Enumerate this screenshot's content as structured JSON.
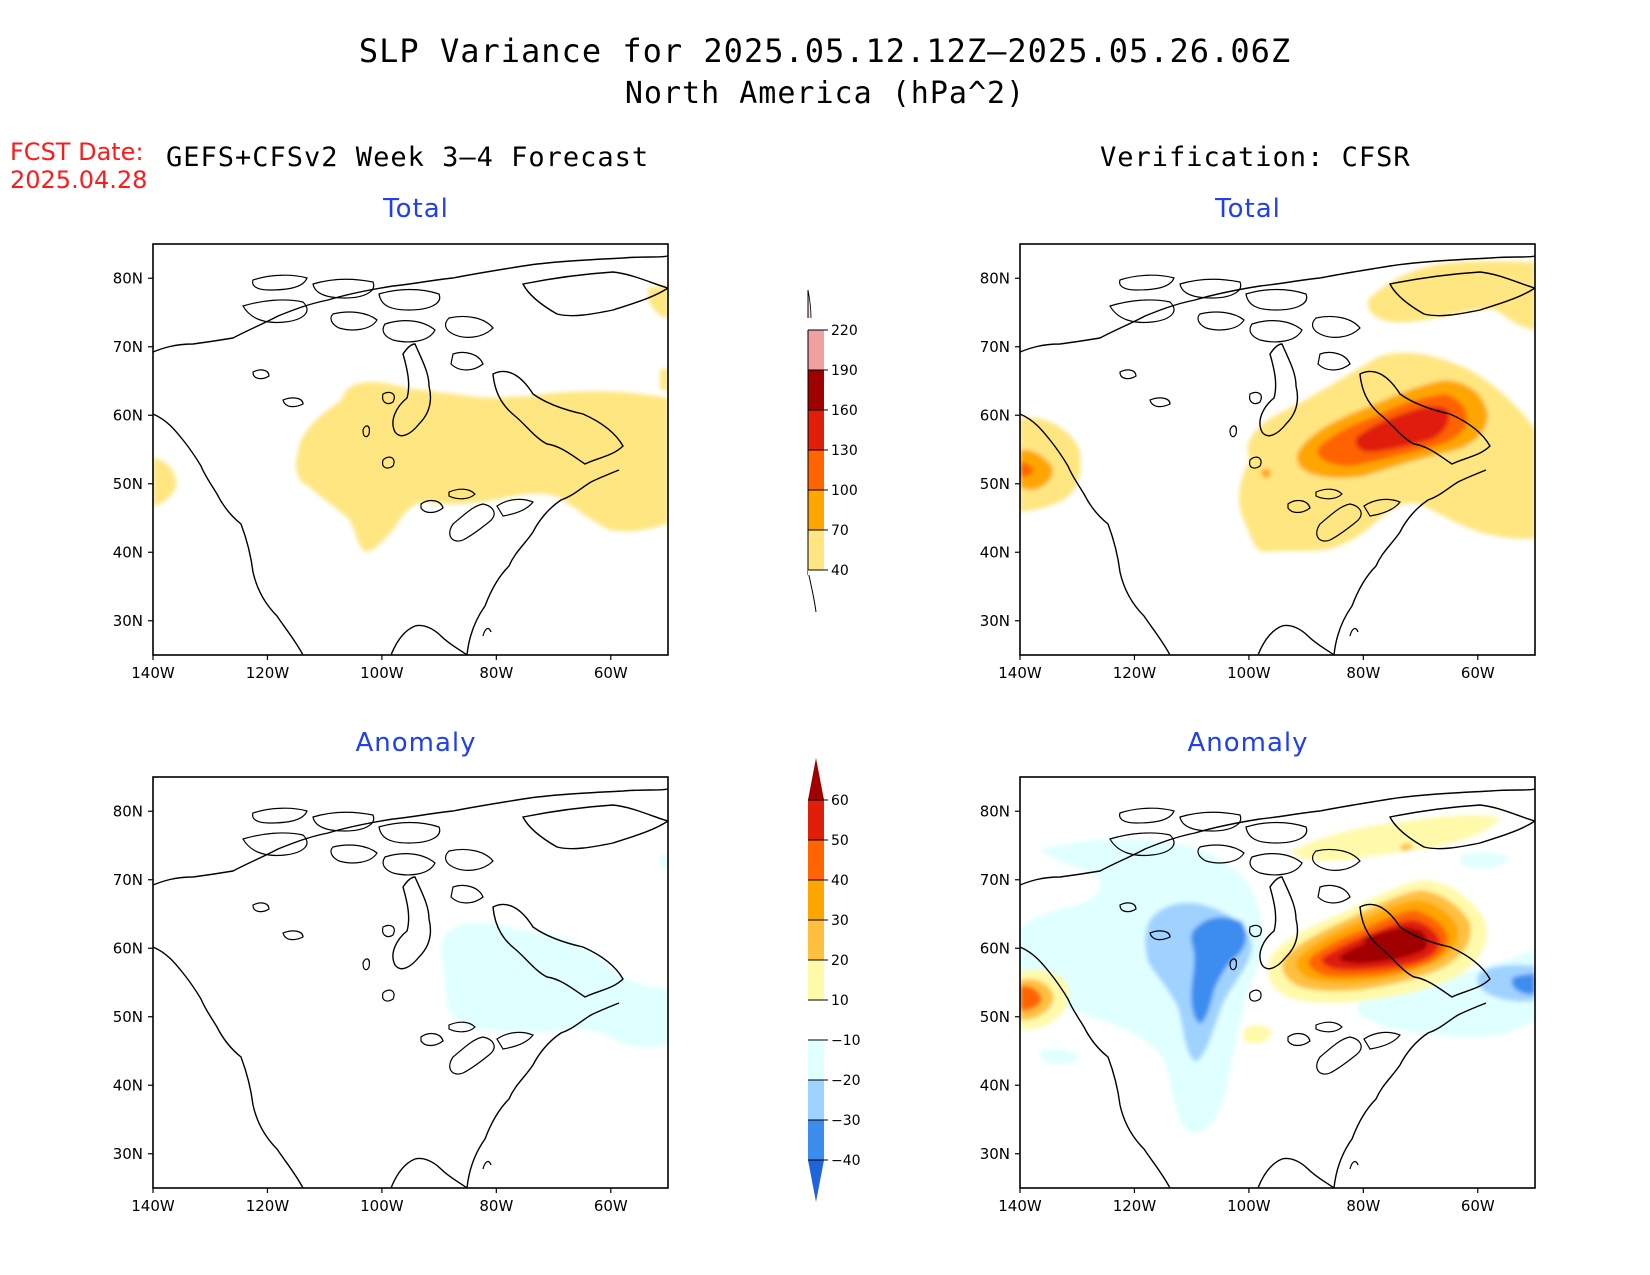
{
  "title": {
    "line1": "SLP Variance for 2025.05.12.12Z–2025.05.26.06Z",
    "line2": "North America (hPa^2)"
  },
  "forecast": {
    "date_label": "FCST Date:",
    "date_value": "2025.04.28",
    "heading": "GEFS+CFSv2 Week 3–4 Forecast"
  },
  "verification": {
    "heading": "Verification: CFSR"
  },
  "panels": {
    "fcst_total_title": "Total",
    "fcst_anom_title": "Anomaly",
    "verif_total_title": "Total",
    "verif_anom_title": "Anomaly"
  },
  "axes": {
    "lat_ticks": [
      "80N",
      "70N",
      "60N",
      "50N",
      "40N",
      "30N"
    ],
    "lon_ticks": [
      "140W",
      "120W",
      "100W",
      "80W",
      "60W"
    ],
    "lat_values": [
      80,
      70,
      60,
      50,
      40,
      30
    ],
    "lon_values": [
      -140,
      -120,
      -100,
      -80,
      -60
    ],
    "lat_range": [
      25,
      85
    ],
    "lon_range": [
      -140,
      -50
    ]
  },
  "colorbars": {
    "total": {
      "labels": [
        "40",
        "70",
        "100",
        "130",
        "160",
        "190",
        "220"
      ],
      "colors": [
        "#ffe680",
        "#ffa500",
        "#ff6400",
        "#e01e0a",
        "#a00000",
        "#f0a0a0",
        "#ffd8d8"
      ]
    },
    "anomaly": {
      "labels": [
        "60",
        "50",
        "40",
        "30",
        "20",
        "10",
        "−10",
        "−20",
        "−30",
        "−40"
      ],
      "colors": [
        "#a00000",
        "#e01e0a",
        "#ff6400",
        "#ffa500",
        "#ffc040",
        "#fffaaa",
        "#ffffff",
        "#e0ffff",
        "#a0d2ff",
        "#3c8cf0",
        "#1e64dc"
      ]
    }
  },
  "colors": {
    "title_panel": "#1f3ff0",
    "fcst_date": "#ff1a1a"
  }
}
